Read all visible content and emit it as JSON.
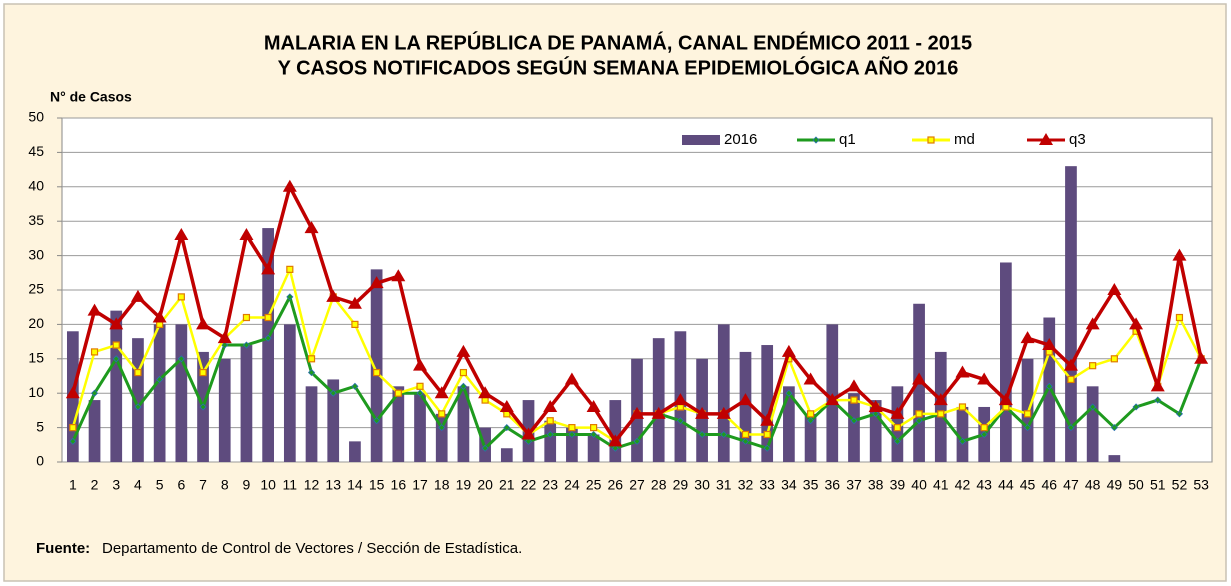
{
  "chart_data": {
    "type": "bar-line",
    "title": [
      "MALARIA EN LA REPÚBLICA DE PANAMÁ, CANAL ENDÉMICO 2011 - 2015",
      "Y CASOS NOTIFICADOS SEGÚN SEMANA EPIDEMIOLÓGICA AÑO 2016"
    ],
    "y_label": "N° de  Casos",
    "source_label": "Fuente:",
    "source_text": "Departamento de Control de Vectores / Sección de Estadística.",
    "categories": [
      "1",
      "2",
      "3",
      "4",
      "5",
      "6",
      "7",
      "8",
      "9",
      "10",
      "11",
      "12",
      "13",
      "14",
      "15",
      "16",
      "17",
      "18",
      "19",
      "20",
      "21",
      "22",
      "23",
      "24",
      "25",
      "26",
      "27",
      "28",
      "29",
      "30",
      "31",
      "32",
      "33",
      "34",
      "35",
      "36",
      "37",
      "38",
      "39",
      "40",
      "41",
      "42",
      "43",
      "44",
      "45",
      "46",
      "47",
      "48",
      "49",
      "50",
      "51",
      "52",
      "53"
    ],
    "ylim": [
      0,
      50
    ],
    "yticks": [
      0,
      5,
      10,
      15,
      20,
      25,
      30,
      35,
      40,
      45,
      50
    ],
    "grid": true,
    "legend": "top-right",
    "series": [
      {
        "name": "2016",
        "kind": "bar",
        "color": "#5e4b7e",
        "values": [
          19,
          9,
          22,
          18,
          20,
          20,
          16,
          15,
          17,
          34,
          20,
          11,
          12,
          3,
          28,
          11,
          10,
          7,
          11,
          5,
          2,
          9,
          6,
          5,
          4,
          9,
          15,
          18,
          19,
          15,
          20,
          16,
          17,
          11,
          7,
          20,
          10,
          9,
          11,
          23,
          16,
          8,
          8,
          29,
          15,
          21,
          43,
          11,
          1,
          null,
          null,
          null,
          null
        ]
      },
      {
        "name": "q1",
        "kind": "line",
        "marker": "diamond",
        "color": "#1e9a1e",
        "values": [
          3,
          10,
          15,
          8,
          12,
          15,
          8,
          17,
          17,
          18,
          24,
          13,
          10,
          11,
          6,
          10,
          10,
          5,
          11,
          2,
          5,
          3,
          4,
          4,
          4,
          2,
          3,
          7,
          6,
          4,
          4,
          3,
          2,
          10,
          6,
          9,
          6,
          7,
          3,
          6,
          7,
          3,
          4,
          8,
          5,
          11,
          5,
          8,
          5,
          8,
          9,
          7,
          15
        ]
      },
      {
        "name": "md",
        "kind": "line",
        "marker": "square",
        "color": "#ffff00",
        "values": [
          5,
          16,
          17,
          13,
          20,
          24,
          13,
          18,
          21,
          21,
          28,
          15,
          24,
          20,
          13,
          10,
          11,
          7,
          13,
          9,
          7,
          4,
          6,
          5,
          5,
          3,
          7,
          7,
          8,
          7,
          7,
          4,
          4,
          15,
          7,
          9,
          9,
          8,
          5,
          7,
          7,
          8,
          5,
          8,
          7,
          16,
          12,
          14,
          15,
          19,
          11,
          21,
          15
        ]
      },
      {
        "name": "q3",
        "kind": "line",
        "marker": "triangle",
        "color": "#c00000",
        "values": [
          10,
          22,
          20,
          24,
          21,
          33,
          20,
          18,
          33,
          28,
          40,
          34,
          24,
          23,
          26,
          27,
          14,
          10,
          16,
          10,
          8,
          4,
          8,
          12,
          8,
          3,
          7,
          7,
          9,
          7,
          7,
          9,
          6,
          16,
          12,
          9,
          11,
          8,
          7,
          12,
          9,
          13,
          12,
          9,
          18,
          17,
          14,
          20,
          25,
          20,
          11,
          30,
          15
        ]
      }
    ]
  }
}
